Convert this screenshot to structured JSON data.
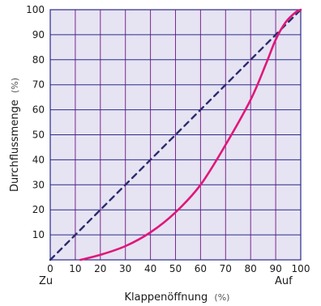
{
  "chart_data": {
    "type": "line",
    "xlabel": "Klappenöffnung",
    "xunit": "(%)",
    "ylabel": "Durchflussmenge",
    "yunit": "(%)",
    "xlim": [
      0,
      100
    ],
    "ylim": [
      0,
      100
    ],
    "x_ticks": [
      0,
      10,
      20,
      30,
      40,
      50,
      60,
      70,
      80,
      90,
      100
    ],
    "y_ticks": [
      10,
      20,
      30,
      40,
      50,
      60,
      70,
      80,
      90,
      100
    ],
    "x_end_labels": {
      "start": "Zu",
      "end": "Auf"
    },
    "grid": true,
    "series": [
      {
        "style": "dashed",
        "color": "#2b2b6e",
        "x": [
          0,
          100
        ],
        "y": [
          0,
          100
        ]
      },
      {
        "style": "solid",
        "color": "#e0177a",
        "x": [
          12,
          20,
          30,
          40,
          50,
          60,
          70,
          80,
          86,
          90,
          94,
          98,
          100
        ],
        "y": [
          0,
          2,
          5.5,
          11,
          19,
          30,
          46,
          64,
          78,
          88,
          95,
          99,
          100
        ]
      }
    ],
    "colors": {
      "plot_background": "#e6e3f3",
      "grid_vertical": "#7a2a8a",
      "grid_horizontal": "#2b2b8a"
    }
  }
}
